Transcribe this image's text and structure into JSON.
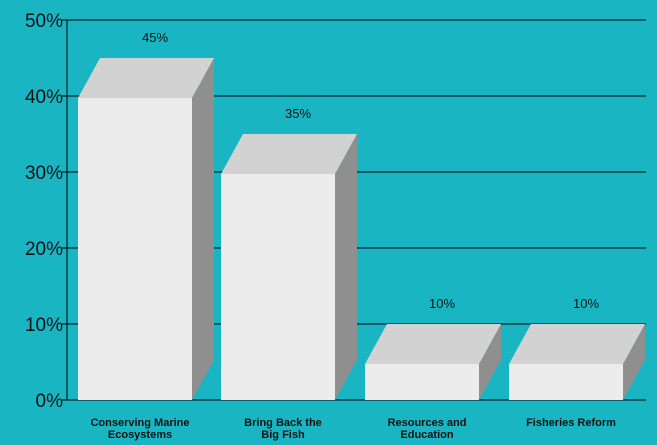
{
  "chart_data": {
    "type": "bar",
    "title": "",
    "xlabel": "",
    "ylabel": "",
    "categories": [
      [
        "Conserving Marine",
        "Ecosystems"
      ],
      [
        "Bring Back the",
        "Big Fish"
      ],
      [
        "Resources and",
        "Education"
      ],
      [
        "Fisheries Reform"
      ]
    ],
    "values": [
      45,
      35,
      10,
      10
    ],
    "data_labels": [
      "45%",
      "35%",
      "10%",
      "10%"
    ],
    "ylim": [
      0,
      50
    ],
    "yticks": [
      0,
      10,
      20,
      30,
      40,
      50
    ],
    "ytick_labels": [
      "0%",
      "10%",
      "20%",
      "30%",
      "40%",
      "50%"
    ],
    "grid": true,
    "style": "3d-column",
    "colors": {
      "background": "#19b5c3",
      "bar_front": "#ececec",
      "bar_top": "#d2d2d2",
      "bar_side": "#8f8f8f",
      "grid": "#000000"
    }
  }
}
